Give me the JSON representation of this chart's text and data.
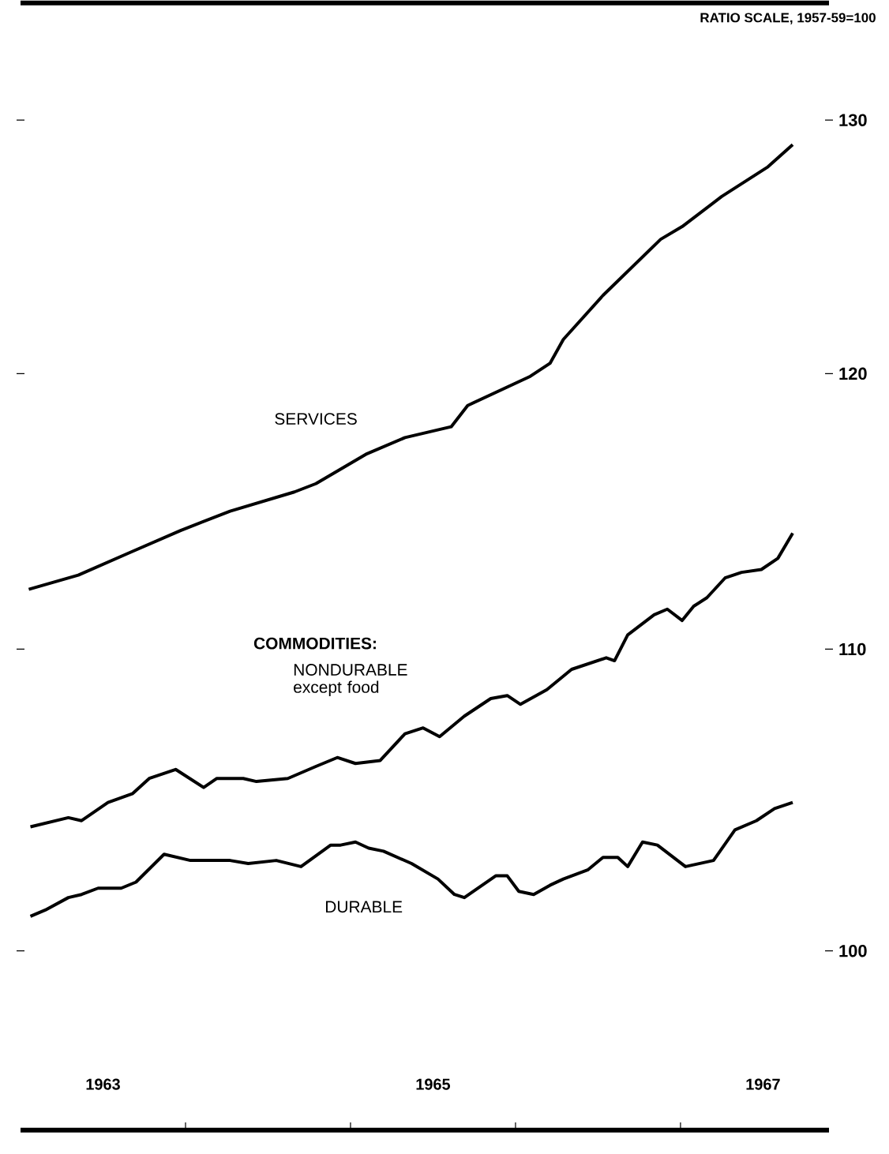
{
  "chart_data": {
    "type": "line",
    "ylabel": "RATIO SCALE, 1957-59=100",
    "annotations": [
      "COMMODITIES:"
    ],
    "series": [
      {
        "name": "SERVICES",
        "color": "#000000",
        "x": [
          1963.05,
          1963.35,
          1963.66,
          1963.97,
          1964.27,
          1964.66,
          1964.79,
          1965.1,
          1965.33,
          1965.61,
          1965.71,
          1966.09,
          1966.21,
          1966.29,
          1966.53,
          1966.88,
          1967.01,
          1967.25,
          1967.53,
          1967.68
        ],
        "values": [
          112.1,
          112.6,
          113.4,
          114.2,
          114.9,
          115.6,
          115.9,
          117.0,
          117.6,
          118.0,
          118.8,
          119.9,
          120.4,
          121.3,
          123.0,
          125.2,
          125.7,
          126.9,
          128.1,
          129.0
        ]
      },
      {
        "name": "NONDURABLE except food",
        "color": "#000000",
        "x": [
          1963.06,
          1963.29,
          1963.37,
          1963.53,
          1963.68,
          1963.78,
          1963.94,
          1964.11,
          1964.19,
          1964.35,
          1964.43,
          1964.62,
          1964.79,
          1964.92,
          1965.03,
          1965.18,
          1965.33,
          1965.44,
          1965.54,
          1965.69,
          1965.85,
          1965.95,
          1966.03,
          1966.19,
          1966.34,
          1966.55,
          1966.6,
          1966.68,
          1966.84,
          1966.92,
          1967.01,
          1967.08,
          1967.16,
          1967.27,
          1967.37,
          1967.49,
          1967.59,
          1967.68
        ],
        "values": [
          104.0,
          104.3,
          104.2,
          104.8,
          105.1,
          105.6,
          105.9,
          105.3,
          105.6,
          105.6,
          105.5,
          105.6,
          106.0,
          106.3,
          106.1,
          106.2,
          107.1,
          107.3,
          107.0,
          107.7,
          108.3,
          108.4,
          108.1,
          108.6,
          109.3,
          109.7,
          109.6,
          110.5,
          111.2,
          111.4,
          111.0,
          111.5,
          111.8,
          112.5,
          112.7,
          112.8,
          113.2,
          114.1
        ]
      },
      {
        "name": "DURABLE",
        "color": "#000000",
        "x": [
          1963.06,
          1963.15,
          1963.29,
          1963.37,
          1963.47,
          1963.61,
          1963.7,
          1963.87,
          1964.03,
          1964.27,
          1964.38,
          1964.55,
          1964.7,
          1964.88,
          1964.94,
          1965.03,
          1965.11,
          1965.2,
          1965.37,
          1965.53,
          1965.63,
          1965.69,
          1965.88,
          1965.95,
          1966.02,
          1966.11,
          1966.21,
          1966.29,
          1966.44,
          1966.53,
          1966.62,
          1966.68,
          1966.77,
          1966.86,
          1967.03,
          1967.2,
          1967.33,
          1967.46,
          1967.57,
          1967.68
        ],
        "values": [
          101.1,
          101.3,
          101.7,
          101.8,
          102.0,
          102.0,
          102.2,
          103.1,
          102.9,
          102.9,
          102.8,
          102.9,
          102.7,
          103.4,
          103.4,
          103.5,
          103.3,
          103.2,
          102.8,
          102.3,
          101.8,
          101.7,
          102.4,
          102.4,
          101.9,
          101.8,
          102.1,
          102.3,
          102.6,
          103.0,
          103.0,
          102.7,
          103.5,
          103.4,
          102.7,
          102.9,
          103.9,
          104.2,
          104.6,
          104.8
        ]
      }
    ],
    "xlim": [
      1963,
      1967.9
    ],
    "ylim": [
      94.5,
      134.9
    ],
    "xticks": [
      {
        "value": 1963.5,
        "label": "1963"
      },
      {
        "value": 1964,
        "label": null
      },
      {
        "value": 1965,
        "label": null
      },
      {
        "value": 1965.5,
        "label": "1965"
      },
      {
        "value": 1966,
        "label": null
      },
      {
        "value": 1967,
        "label": null
      },
      {
        "value": 1967.5,
        "label": "1967"
      }
    ],
    "yticks": [
      100,
      110,
      120,
      130
    ],
    "log": true,
    "grid": false,
    "legend": false,
    "marker": "none",
    "line_style": "solid"
  }
}
